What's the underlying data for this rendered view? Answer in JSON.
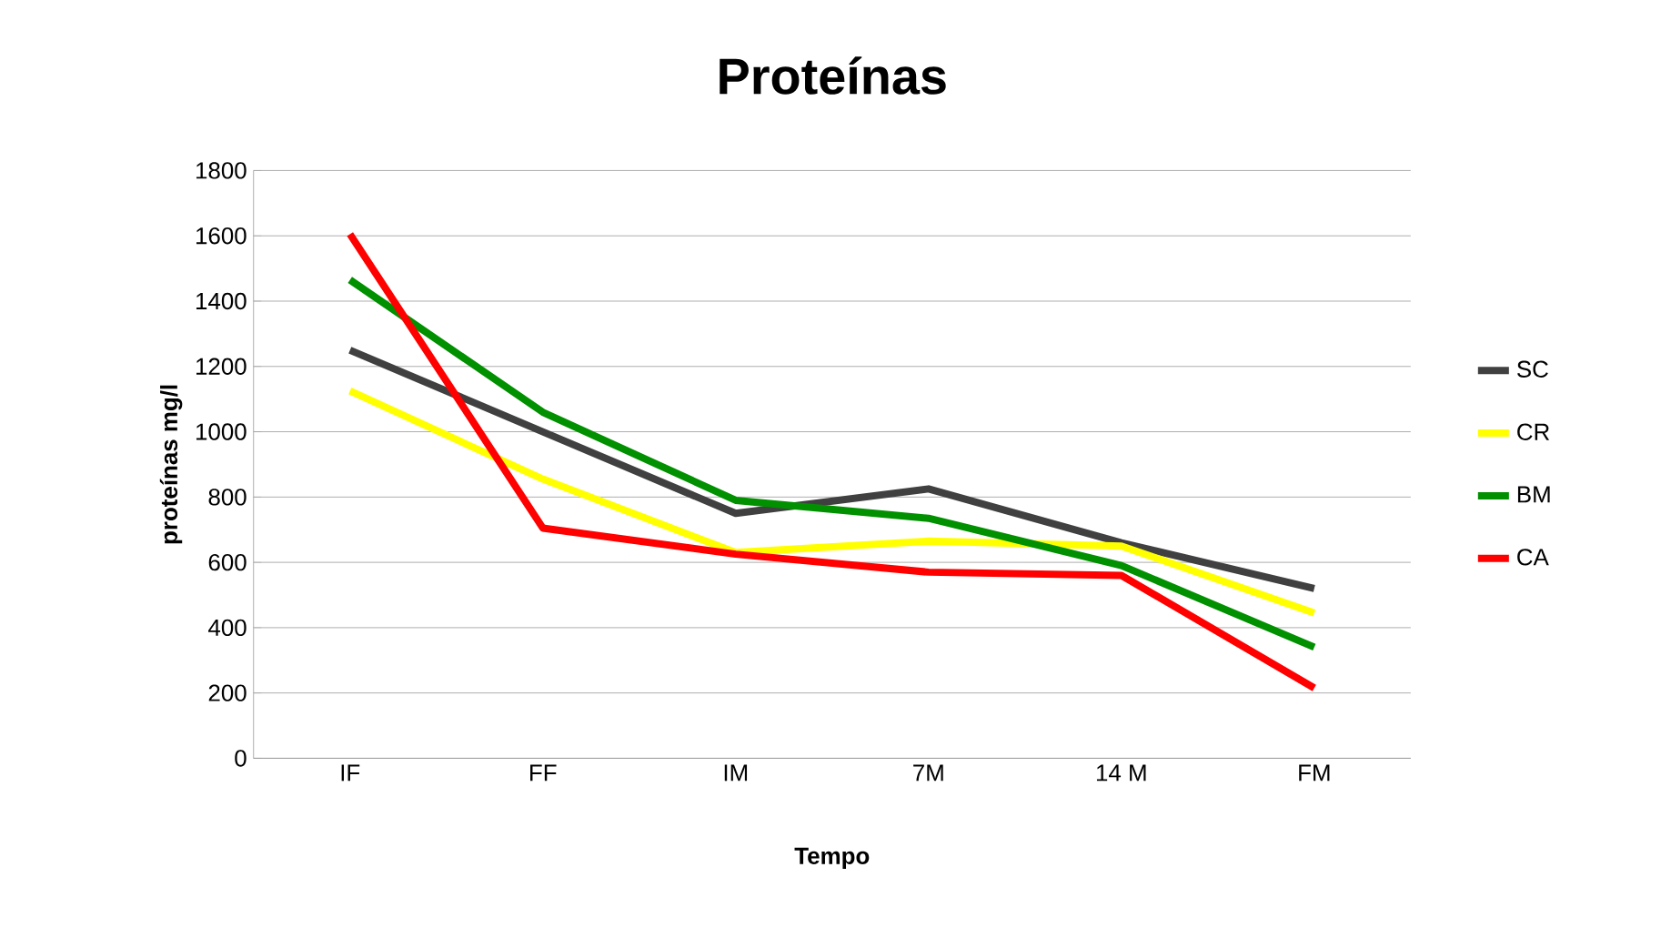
{
  "chart_data": {
    "type": "line",
    "title": "Proteínas",
    "xlabel": "Tempo",
    "ylabel": "proteínas mg/l",
    "categories": [
      "IF",
      "FF",
      "IM",
      "7M",
      "14 M",
      "FM"
    ],
    "ylim": [
      0,
      1800
    ],
    "yticks": [
      0,
      200,
      400,
      600,
      800,
      1000,
      1200,
      1400,
      1600,
      1800
    ],
    "grid": "y",
    "legend": "right",
    "marker": "none",
    "line_style": "solid",
    "series": [
      {
        "name": "SC",
        "color": "#404040",
        "values": [
          1250,
          1000,
          750,
          825,
          660,
          520
        ]
      },
      {
        "name": "CR",
        "color": "#ffff00",
        "values": [
          1125,
          855,
          630,
          665,
          650,
          445
        ]
      },
      {
        "name": "BM",
        "color": "#009000",
        "values": [
          1465,
          1060,
          790,
          735,
          590,
          340
        ]
      },
      {
        "name": "CA",
        "color": "#ff0000",
        "values": [
          1605,
          705,
          625,
          570,
          560,
          215
        ]
      }
    ]
  }
}
